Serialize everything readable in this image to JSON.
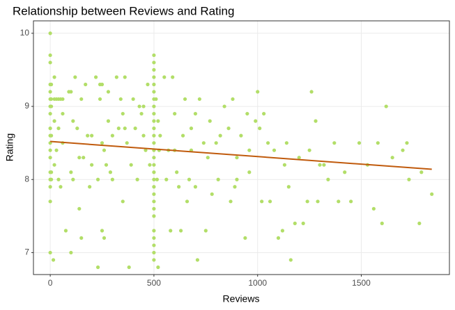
{
  "chart_data": {
    "type": "scatter",
    "title": "Relationship between Reviews and Rating",
    "xlabel": "Reviews",
    "ylabel": "Rating",
    "xlim": [
      -81,
      1925
    ],
    "ylim": [
      6.7,
      10.17
    ],
    "xticks": [
      0,
      500,
      1000,
      1500
    ],
    "yticks": [
      7,
      8,
      9,
      10
    ],
    "grid": true,
    "series": [
      {
        "color": "#b2de68",
        "x": [
          0,
          0,
          0,
          0,
          0,
          0,
          0,
          0,
          0,
          0,
          0,
          0,
          0,
          0,
          0,
          0,
          0,
          0,
          5,
          5,
          5,
          5,
          5,
          5,
          15,
          20,
          20,
          30,
          40,
          50,
          60,
          20,
          40,
          60,
          30,
          40,
          50,
          20,
          60,
          75,
          90,
          100,
          110,
          100,
          100,
          120,
          130,
          140,
          140,
          150,
          150,
          160,
          170,
          180,
          190,
          200,
          200,
          110,
          220,
          230,
          240,
          240,
          250,
          250,
          260,
          260,
          270,
          280,
          280,
          290,
          300,
          300,
          230,
          250,
          320,
          330,
          340,
          350,
          350,
          360,
          360,
          370,
          380,
          390,
          400,
          410,
          420,
          430,
          440,
          450,
          450,
          460,
          470,
          480,
          500,
          500,
          500,
          500,
          500,
          500,
          500,
          500,
          500,
          500,
          500,
          500,
          500,
          500,
          500,
          500,
          500,
          500,
          500,
          500,
          500,
          500,
          500,
          500,
          500,
          500,
          500,
          500,
          520,
          520,
          530,
          510,
          525,
          515,
          550,
          560,
          570,
          580,
          590,
          600,
          610,
          620,
          630,
          640,
          650,
          660,
          670,
          680,
          700,
          700,
          710,
          720,
          740,
          750,
          760,
          770,
          780,
          800,
          810,
          820,
          840,
          860,
          870,
          880,
          890,
          900,
          920,
          940,
          950,
          960,
          990,
          1000,
          1010,
          1020,
          1030,
          1050,
          1060,
          1080,
          1100,
          1120,
          1130,
          1140,
          1150,
          1160,
          1180,
          1200,
          1220,
          1240,
          1250,
          1260,
          1280,
          1290,
          1300,
          1320,
          1340,
          1370,
          1390,
          1420,
          1450,
          1490,
          1530,
          1560,
          1580,
          1600,
          1620,
          1650,
          1700,
          1720,
          1730,
          1780,
          1790,
          1840,
          600,
          680,
          900,
          960
        ],
        "values": [
          10.0,
          9.7,
          9.6,
          9.3,
          9.2,
          9.1,
          9.0,
          8.9,
          8.7,
          8.6,
          8.5,
          8.4,
          8.3,
          8.1,
          8.0,
          7.9,
          7.7,
          7.0,
          9.3,
          9.1,
          9.0,
          8.6,
          8.1,
          8.0,
          6.9,
          9.4,
          9.1,
          9.1,
          9.1,
          9.1,
          9.1,
          8.8,
          8.7,
          8.5,
          8.4,
          8.0,
          7.9,
          8.2,
          8.9,
          7.3,
          9.2,
          9.2,
          8.8,
          8.1,
          7.0,
          9.4,
          8.7,
          8.3,
          7.6,
          9.1,
          7.2,
          8.3,
          9.3,
          8.6,
          7.9,
          8.6,
          8.2,
          8.0,
          9.4,
          6.8,
          9.3,
          9.1,
          8.5,
          7.3,
          8.4,
          7.2,
          8.2,
          9.2,
          8.8,
          8.1,
          8.6,
          8.0,
          8.0,
          9.3,
          9.4,
          8.7,
          9.1,
          8.9,
          7.7,
          8.7,
          9.4,
          8.5,
          6.8,
          8.2,
          9.1,
          8.7,
          8.0,
          9.0,
          8.9,
          8.6,
          9.0,
          8.4,
          9.3,
          8.2,
          9.7,
          9.6,
          9.5,
          9.4,
          9.3,
          9.2,
          9.1,
          9.0,
          8.9,
          8.8,
          8.7,
          8.6,
          8.5,
          8.4,
          8.3,
          8.2,
          8.1,
          8.0,
          7.9,
          7.8,
          7.7,
          7.6,
          7.5,
          7.3,
          7.2,
          7.1,
          7.0,
          6.9,
          6.8,
          8.8,
          8.6,
          9.1,
          8.4,
          8.0,
          9.4,
          8.0,
          8.4,
          7.3,
          9.4,
          8.9,
          8.1,
          7.9,
          7.3,
          8.6,
          9.1,
          7.7,
          8.0,
          8.4,
          8.9,
          7.9,
          6.9,
          9.1,
          8.5,
          7.3,
          8.3,
          8.8,
          7.8,
          8.5,
          8.0,
          8.6,
          9.0,
          8.7,
          7.7,
          9.1,
          7.9,
          8.3,
          8.6,
          7.2,
          8.9,
          8.4,
          8.8,
          9.2,
          8.7,
          7.7,
          8.9,
          8.5,
          7.7,
          8.4,
          7.2,
          7.3,
          8.2,
          8.5,
          7.9,
          6.9,
          7.4,
          8.3,
          7.4,
          7.7,
          8.4,
          9.2,
          8.8,
          7.7,
          8.2,
          8.2,
          8.0,
          8.5,
          7.7,
          8.1,
          7.7,
          8.5,
          8.2,
          7.6,
          8.5,
          7.4,
          9.0,
          8.3,
          8.4,
          8.5,
          8.0,
          7.4,
          8.1,
          7.8,
          8.4,
          8.7,
          8.0,
          8.1
        ]
      }
    ],
    "trend": {
      "color": "#c05a0c",
      "x": [
        0,
        1840
      ],
      "values": [
        8.52,
        8.14
      ]
    }
  }
}
